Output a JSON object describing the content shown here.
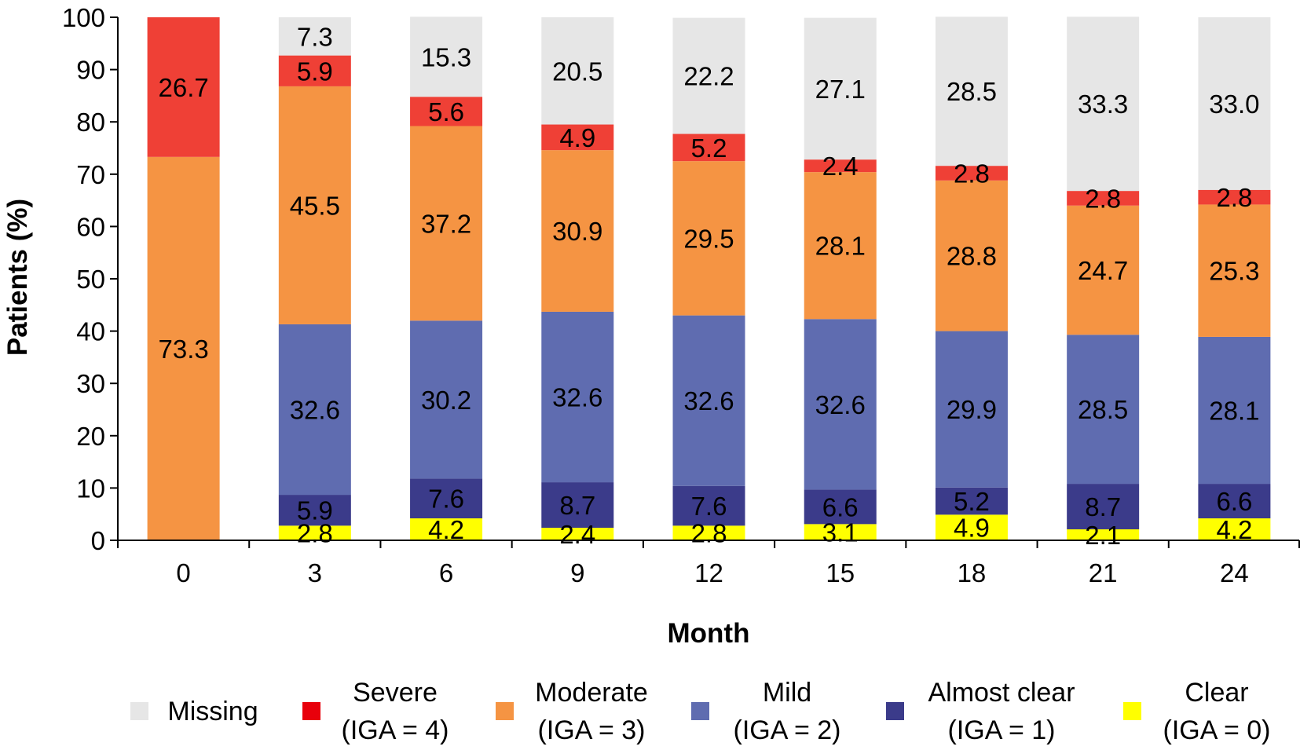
{
  "chart_data": {
    "type": "bar",
    "stacked": true,
    "title": "",
    "xlabel": "Month",
    "ylabel": "Patients (%)",
    "ylim": [
      0,
      100
    ],
    "yticks": [
      "0",
      "10",
      "20",
      "30",
      "40",
      "50",
      "60",
      "70",
      "80",
      "90",
      "100"
    ],
    "categories": [
      "0",
      "3",
      "6",
      "9",
      "12",
      "15",
      "18",
      "21",
      "24"
    ],
    "series": [
      {
        "name": "Clear (IGA = 0)",
        "legend_lines": [
          "Clear",
          "(IGA = 0)"
        ],
        "color": "#ffff00",
        "values": [
          0,
          2.8,
          4.2,
          2.4,
          2.8,
          3.1,
          4.9,
          2.1,
          4.2
        ],
        "labels": [
          "",
          "2.8",
          "4.2",
          "2.4",
          "2.8",
          "3.1",
          "4.9",
          "2.1",
          "4.2"
        ]
      },
      {
        "name": "Almost clear (IGA = 1)",
        "legend_lines": [
          "Almost clear",
          "(IGA = 1)"
        ],
        "color": "#3b3b8a",
        "values": [
          0,
          5.9,
          7.6,
          8.7,
          7.6,
          6.6,
          5.2,
          8.7,
          6.6
        ],
        "labels": [
          "",
          "5.9",
          "7.6",
          "8.7",
          "7.6",
          "6.6",
          "5.2",
          "8.7",
          "6.6"
        ]
      },
      {
        "name": "Mild (IGA = 2)",
        "legend_lines": [
          "Mild",
          "(IGA = 2)"
        ],
        "color": "#5f6cb0",
        "values": [
          0,
          32.6,
          30.2,
          32.6,
          32.6,
          32.6,
          29.9,
          28.5,
          28.1
        ],
        "labels": [
          "",
          "32.6",
          "30.2",
          "32.6",
          "32.6",
          "32.6",
          "29.9",
          "28.5",
          "28.1"
        ]
      },
      {
        "name": "Moderate (IGA = 3)",
        "legend_lines": [
          "Moderate",
          "(IGA = 3)"
        ],
        "color": "#f59443",
        "values": [
          73.3,
          45.5,
          37.2,
          30.9,
          29.5,
          28.1,
          28.8,
          24.7,
          25.3
        ],
        "labels": [
          "73.3",
          "45.5",
          "37.2",
          "30.9",
          "29.5",
          "28.1",
          "28.8",
          "24.7",
          "25.3"
        ]
      },
      {
        "name": "Severe (IGA = 4)",
        "legend_lines": [
          "Severe",
          "(IGA = 4)"
        ],
        "color": "#ef4036",
        "legend_color": "#e8000b",
        "values": [
          26.7,
          5.9,
          5.6,
          4.9,
          5.2,
          2.4,
          2.8,
          2.8,
          2.8
        ],
        "labels": [
          "26.7",
          "5.9",
          "5.6",
          "4.9",
          "5.2",
          "2.4",
          "2.8",
          "2.8",
          "2.8"
        ]
      },
      {
        "name": "Missing",
        "legend_lines": [
          "Missing"
        ],
        "color": "#e6e6e6",
        "values": [
          0,
          7.3,
          15.3,
          20.5,
          22.2,
          27.1,
          28.5,
          33.3,
          33.0
        ],
        "labels": [
          "",
          "7.3",
          "15.3",
          "20.5",
          "22.2",
          "27.1",
          "28.5",
          "33.3",
          "33.0"
        ]
      }
    ],
    "legend_order": [
      "Missing",
      "Severe (IGA = 4)",
      "Moderate (IGA = 3)",
      "Mild (IGA = 2)",
      "Almost clear (IGA = 1)",
      "Clear (IGA = 0)"
    ],
    "legend_position": "bottom",
    "grid": false
  }
}
